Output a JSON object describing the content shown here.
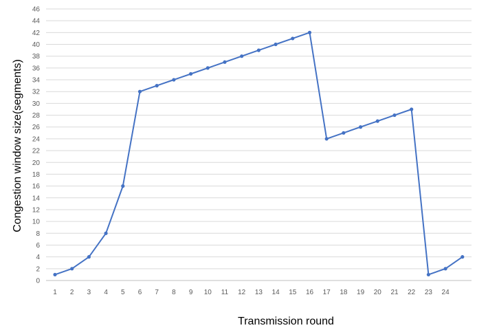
{
  "chart_data": {
    "type": "line",
    "xlabel": "Transmission round",
    "ylabel": "Congestion window size(segments)",
    "x_tick_labels": [
      "1",
      "2",
      "3",
      "4",
      "5",
      "6",
      "7",
      "8",
      "9",
      "10",
      "11",
      "12",
      "13",
      "14",
      "15",
      "16",
      "17",
      "18",
      "19",
      "20",
      "21",
      "22",
      "23",
      "24"
    ],
    "ylim": [
      0,
      46
    ],
    "y_ticks": [
      0,
      2,
      4,
      6,
      8,
      10,
      12,
      14,
      16,
      18,
      20,
      22,
      24,
      26,
      28,
      30,
      32,
      34,
      36,
      38,
      40,
      42,
      44,
      46
    ],
    "grid": true,
    "legend": "none",
    "series": [
      {
        "x": [
          1,
          2,
          3,
          4,
          5,
          6,
          7,
          8,
          9,
          10,
          11,
          12,
          13,
          14,
          15,
          16,
          17,
          18,
          19,
          20,
          21,
          22,
          23,
          24,
          25
        ],
        "values": [
          1,
          2,
          4,
          8,
          16,
          32,
          33,
          34,
          35,
          36,
          37,
          38,
          39,
          40,
          41,
          42,
          24,
          25,
          26,
          27,
          28,
          29,
          1,
          2,
          4
        ],
        "color": "#4472c4"
      }
    ]
  }
}
